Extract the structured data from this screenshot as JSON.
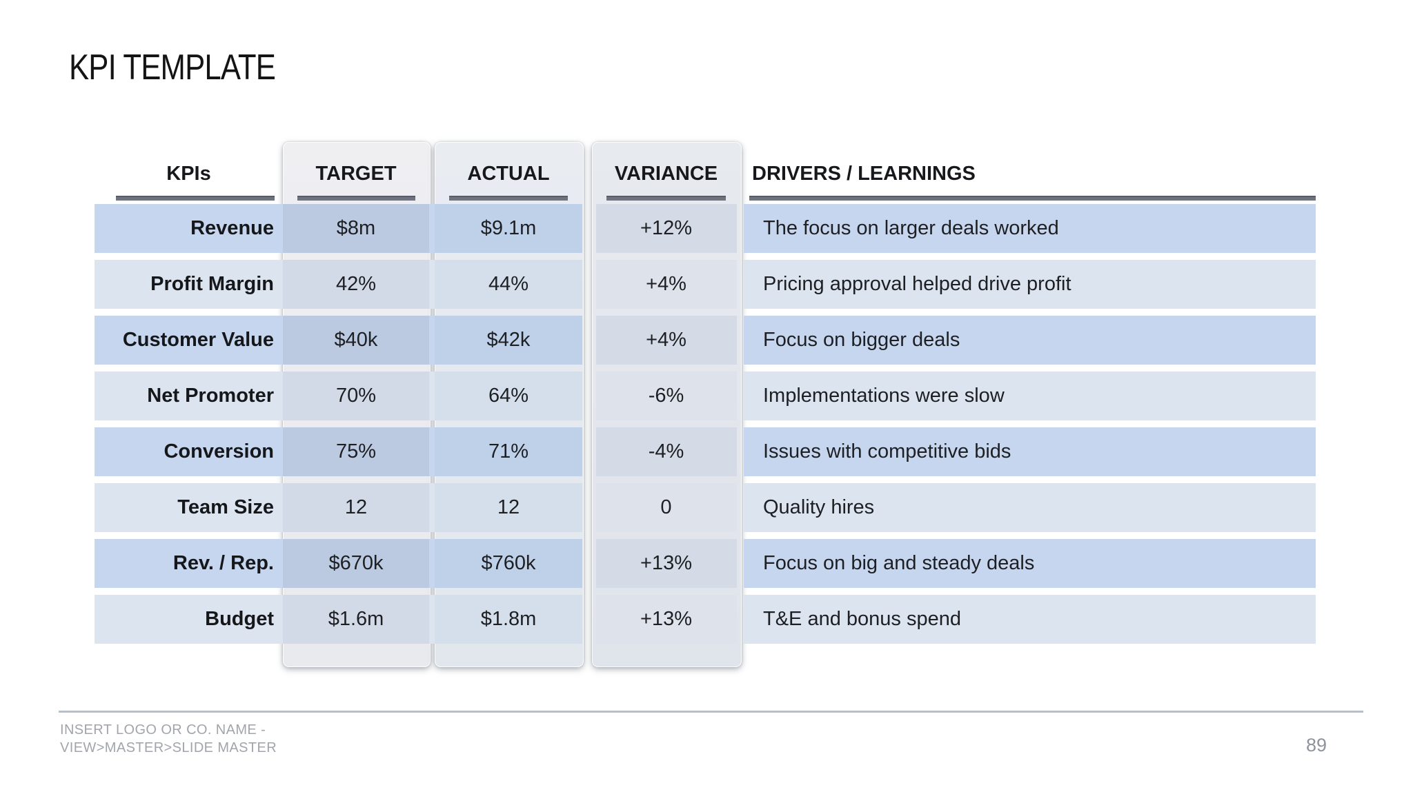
{
  "slide": {
    "title": "KPI TEMPLATE"
  },
  "table": {
    "headers": {
      "kpi": "KPIs",
      "target": "TARGET",
      "actual": "ACTUAL",
      "variance": "VARIANCE",
      "drivers": "DRIVERS / LEARNINGS"
    },
    "rows": [
      {
        "kpi": "Revenue",
        "target": "$8m",
        "actual": "$9.1m",
        "variance": "+12%",
        "driver": "The focus on larger deals worked"
      },
      {
        "kpi": "Profit Margin",
        "target": "42%",
        "actual": "44%",
        "variance": "+4%",
        "driver": "Pricing approval helped drive profit"
      },
      {
        "kpi": "Customer Value",
        "target": "$40k",
        "actual": "$42k",
        "variance": "+4%",
        "driver": "Focus on bigger deals"
      },
      {
        "kpi": "Net Promoter",
        "target": "70%",
        "actual": "64%",
        "variance": "-6%",
        "driver": "Implementations were slow"
      },
      {
        "kpi": "Conversion",
        "target": "75%",
        "actual": "71%",
        "variance": "-4%",
        "driver": "Issues with competitive bids"
      },
      {
        "kpi": "Team Size",
        "target": "12",
        "actual": "12",
        "variance": "0",
        "driver": "Quality hires"
      },
      {
        "kpi": "Rev. / Rep.",
        "target": "$670k",
        "actual": "$760k",
        "variance": "+13%",
        "driver": "Focus on big and steady deals"
      },
      {
        "kpi": "Budget",
        "target": "$1.6m",
        "actual": "$1.8m",
        "variance": "+13%",
        "driver": "T&E and bonus spend"
      }
    ]
  },
  "footer": {
    "line1": "INSERT LOGO OR CO. NAME -",
    "line2": "VIEW>MASTER>SLIDE MASTER",
    "page_number": "89"
  },
  "colors": {
    "row_dark": "#c6d6ee",
    "row_light": "#dce4f0",
    "card_gray": "#ebebef",
    "rule_gray": "#6e737d",
    "footer_line": "#b4c0d0",
    "footer_text": "#a1a5ab"
  }
}
